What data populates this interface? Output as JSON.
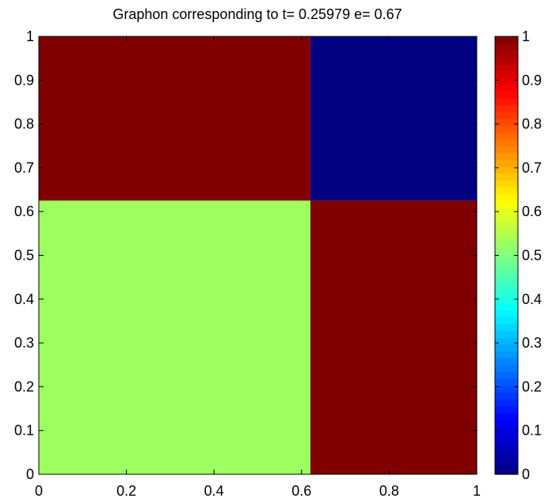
{
  "chart_data": {
    "type": "heatmap",
    "title": "Graphon corresponding to t= 0.25979  e= 0.67",
    "xlabel": "",
    "ylabel": "",
    "xlim": [
      0,
      1
    ],
    "ylim": [
      0,
      1
    ],
    "x_ticks": [
      "0",
      "0.2",
      "0.4",
      "0.6",
      "0.8",
      "1"
    ],
    "y_ticks": [
      "0",
      "0.1",
      "0.2",
      "0.3",
      "0.4",
      "0.5",
      "0.6",
      "0.7",
      "0.8",
      "0.9",
      "1"
    ],
    "x_edges": [
      0,
      0.62,
      1
    ],
    "y_edges": [
      0,
      0.625,
      1
    ],
    "values": [
      [
        0.53,
        1.0
      ],
      [
        1.0,
        0.0
      ]
    ],
    "grid": false,
    "colormap": "jet",
    "colorbar": {
      "limits": [
        0,
        1
      ],
      "ticks": [
        "0",
        "0.1",
        "0.2",
        "0.3",
        "0.4",
        "0.5",
        "0.6",
        "0.7",
        "0.8",
        "0.9",
        "1"
      ],
      "placement": "right"
    }
  }
}
